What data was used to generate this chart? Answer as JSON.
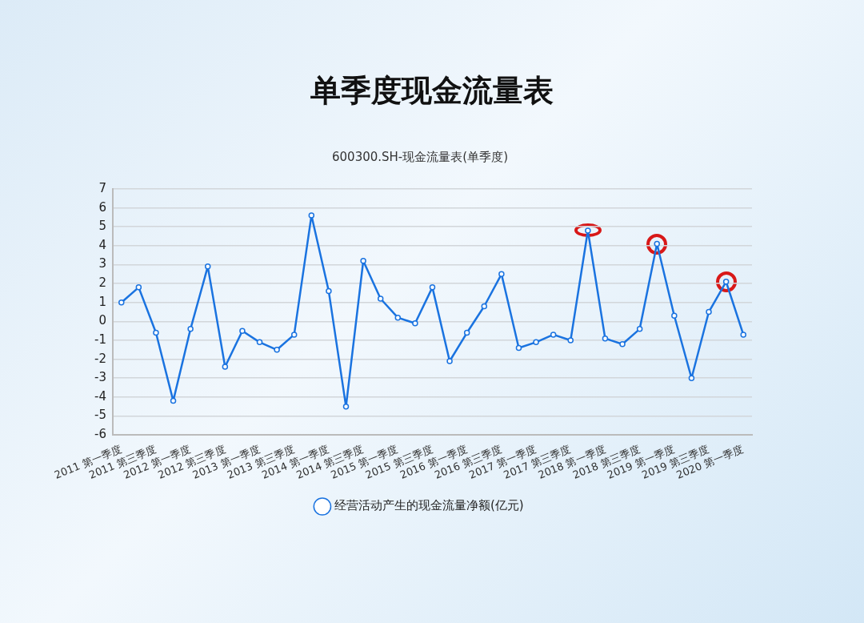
{
  "chart_data": {
    "type": "line",
    "title": "单季度现金流量表",
    "subtitle": "600300.SH-现金流量表(单季度)",
    "categories": [
      "2011 第一季度",
      null,
      "2011 第三季度",
      null,
      "2012 第一季度",
      null,
      "2012 第三季度",
      null,
      "2013 第一季度",
      null,
      "2013 第三季度",
      null,
      "2014 第一季度",
      null,
      "2014 第三季度",
      null,
      "2015 第一季度",
      null,
      "2015 第三季度",
      null,
      "2016 第一季度",
      null,
      "2016 第三季度",
      null,
      "2017 第一季度",
      null,
      "2017 第三季度",
      null,
      "2018 第一季度",
      null,
      "2018 第三季度",
      null,
      "2019 第一季度",
      null,
      "2019 第三季度",
      null,
      "2020 第一季度"
    ],
    "series": [
      {
        "name": "经营活动产生的现金流量净额(亿元)",
        "color": "#1a73e0",
        "values": [
          1.0,
          1.8,
          -0.6,
          -4.2,
          -0.4,
          2.9,
          -2.4,
          -0.5,
          -1.1,
          -1.5,
          -0.7,
          5.6,
          1.6,
          -4.5,
          3.2,
          1.2,
          0.2,
          -0.1,
          1.8,
          -2.1,
          -0.6,
          0.8,
          2.5,
          -1.4,
          -1.1,
          -0.7,
          -1.0,
          4.8,
          -0.9,
          -1.2,
          -0.4,
          4.1,
          0.3,
          -3.0,
          0.5,
          2.1,
          -0.7
        ]
      }
    ],
    "ylim": [
      -6,
      7
    ],
    "yticks": [
      -6,
      -5,
      -4,
      -3,
      -2,
      -1,
      0,
      1,
      2,
      3,
      4,
      5,
      6,
      7
    ],
    "grid": "y",
    "legend": "bottom",
    "marker": "circle",
    "line_style": "solid"
  }
}
